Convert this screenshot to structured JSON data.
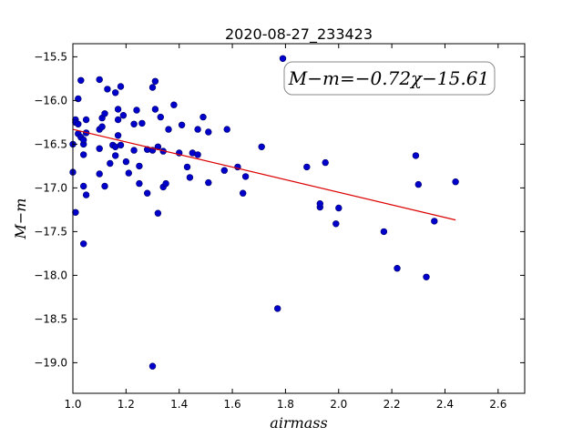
{
  "chart_data": {
    "type": "scatter",
    "title": "2020-08-27_233423",
    "xlabel": "airmass",
    "ylabel": "M−m",
    "xlim": [
      1.0,
      2.7
    ],
    "ylim": [
      -19.35,
      -15.35
    ],
    "y_inverted": true,
    "xticks": [
      1.0,
      1.2,
      1.4,
      1.6,
      1.8,
      2.0,
      2.2,
      2.4,
      2.6
    ],
    "xtick_labels": [
      "1.0",
      "1.2",
      "1.4",
      "1.6",
      "1.8",
      "2.0",
      "2.2",
      "2.4",
      "2.6"
    ],
    "yticks": [
      -15.5,
      -16.0,
      -16.5,
      -17.0,
      -17.5,
      -18.0,
      -18.5,
      -19.0
    ],
    "ytick_labels": [
      "−15.5",
      "−16.0",
      "−16.5",
      "−17.0",
      "−17.5",
      "−18.0",
      "−18.5",
      "−19.0"
    ],
    "annotation": "M−m=−0.72χ−15.61",
    "grid": false,
    "point_color": "#0000cc",
    "fit_color": "#dd0000",
    "fit": {
      "slope": -0.72,
      "intercept": -15.61,
      "x_range": [
        1.0,
        2.44
      ]
    },
    "points": [
      [
        1.0,
        -16.82
      ],
      [
        1.0,
        -16.5
      ],
      [
        1.01,
        -17.28
      ],
      [
        1.01,
        -16.22
      ],
      [
        1.01,
        -16.25
      ],
      [
        1.02,
        -16.27
      ],
      [
        1.02,
        -15.98
      ],
      [
        1.02,
        -16.38
      ],
      [
        1.03,
        -15.77
      ],
      [
        1.03,
        -16.42
      ],
      [
        1.04,
        -17.64
      ],
      [
        1.04,
        -16.5
      ],
      [
        1.04,
        -16.45
      ],
      [
        1.04,
        -16.62
      ],
      [
        1.04,
        -16.98
      ],
      [
        1.05,
        -16.22
      ],
      [
        1.05,
        -16.37
      ],
      [
        1.05,
        -17.08
      ],
      [
        1.1,
        -15.76
      ],
      [
        1.1,
        -16.33
      ],
      [
        1.1,
        -16.84
      ],
      [
        1.1,
        -16.55
      ],
      [
        1.11,
        -16.3
      ],
      [
        1.11,
        -16.2
      ],
      [
        1.12,
        -16.15
      ],
      [
        1.12,
        -16.98
      ],
      [
        1.13,
        -15.87
      ],
      [
        1.14,
        -16.72
      ],
      [
        1.15,
        -16.51
      ],
      [
        1.16,
        -15.91
      ],
      [
        1.16,
        -16.63
      ],
      [
        1.16,
        -16.53
      ],
      [
        1.17,
        -16.1
      ],
      [
        1.17,
        -16.4
      ],
      [
        1.17,
        -16.22
      ],
      [
        1.18,
        -15.84
      ],
      [
        1.18,
        -16.51
      ],
      [
        1.19,
        -16.17
      ],
      [
        1.2,
        -16.7
      ],
      [
        1.21,
        -16.83
      ],
      [
        1.23,
        -16.57
      ],
      [
        1.23,
        -16.27
      ],
      [
        1.24,
        -16.11
      ],
      [
        1.25,
        -16.75
      ],
      [
        1.25,
        -16.95
      ],
      [
        1.26,
        -16.26
      ],
      [
        1.28,
        -17.06
      ],
      [
        1.28,
        -16.56
      ],
      [
        1.3,
        -16.57
      ],
      [
        1.3,
        -15.85
      ],
      [
        1.31,
        -15.78
      ],
      [
        1.31,
        -16.1
      ],
      [
        1.32,
        -17.29
      ],
      [
        1.32,
        -16.53
      ],
      [
        1.33,
        -16.19
      ],
      [
        1.34,
        -16.58
      ],
      [
        1.34,
        -16.99
      ],
      [
        1.35,
        -16.95
      ],
      [
        1.36,
        -16.33
      ],
      [
        1.38,
        -16.05
      ],
      [
        1.4,
        -16.6
      ],
      [
        1.41,
        -16.28
      ],
      [
        1.43,
        -16.76
      ],
      [
        1.44,
        -16.88
      ],
      [
        1.45,
        -16.6
      ],
      [
        1.47,
        -16.33
      ],
      [
        1.47,
        -16.62
      ],
      [
        1.49,
        -16.19
      ],
      [
        1.51,
        -16.36
      ],
      [
        1.51,
        -16.94
      ],
      [
        1.57,
        -16.8
      ],
      [
        1.58,
        -16.33
      ],
      [
        1.62,
        -16.76
      ],
      [
        1.64,
        -17.06
      ],
      [
        1.65,
        -16.87
      ],
      [
        1.71,
        -16.53
      ],
      [
        1.77,
        -18.38
      ],
      [
        1.79,
        -15.52
      ],
      [
        1.88,
        -16.76
      ],
      [
        1.93,
        -17.22
      ],
      [
        1.93,
        -17.18
      ],
      [
        1.95,
        -16.71
      ],
      [
        1.99,
        -17.41
      ],
      [
        2.0,
        -17.23
      ],
      [
        2.17,
        -17.5
      ],
      [
        2.22,
        -17.92
      ],
      [
        2.29,
        -16.63
      ],
      [
        2.3,
        -16.96
      ],
      [
        2.33,
        -18.02
      ],
      [
        2.36,
        -17.38
      ],
      [
        2.44,
        -16.93
      ],
      [
        1.3,
        -19.04
      ]
    ]
  }
}
